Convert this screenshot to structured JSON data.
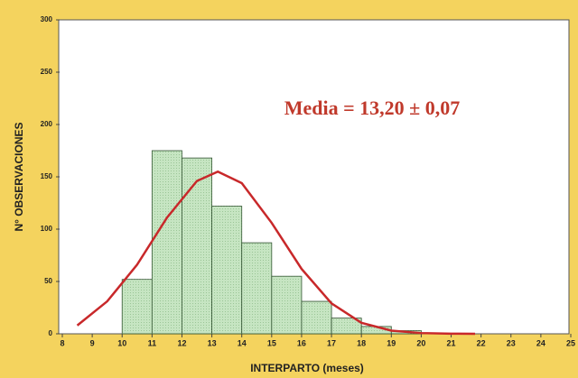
{
  "chart_data": {
    "type": "histogram",
    "annotation": "Media = 13,20 ± 0,07",
    "xlabel": "INTERPARTO (meses)",
    "ylabel": "N° OBSERVACIONES",
    "bins": [
      10,
      11,
      12,
      13,
      14,
      15,
      16,
      17,
      18,
      19,
      20
    ],
    "counts": [
      52,
      175,
      168,
      122,
      87,
      55,
      31,
      15,
      7,
      3
    ],
    "color": "#c6e5c2",
    "curve": {
      "color": "#c8282a",
      "x": [
        8.5,
        9.5,
        10.5,
        11.5,
        12.5,
        13.2,
        14,
        15,
        16,
        17,
        18,
        19,
        20,
        21,
        21.8
      ],
      "values": [
        8,
        31,
        66,
        111,
        146,
        155,
        144,
        106,
        62,
        29,
        10.5,
        3,
        0.7,
        0.1,
        0
      ]
    },
    "xlim": [
      8,
      25
    ],
    "xticks": [
      8,
      9,
      10,
      11,
      12,
      13,
      14,
      15,
      16,
      17,
      18,
      19,
      20,
      21,
      22,
      23,
      24,
      25
    ],
    "ylim": [
      0,
      300
    ],
    "yticks": [
      0,
      50,
      100,
      150,
      200,
      250,
      300
    ]
  }
}
